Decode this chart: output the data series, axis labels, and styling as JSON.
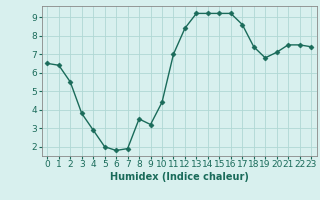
{
  "x": [
    0,
    1,
    2,
    3,
    4,
    5,
    6,
    7,
    8,
    9,
    10,
    11,
    12,
    13,
    14,
    15,
    16,
    17,
    18,
    19,
    20,
    21,
    22,
    23
  ],
  "y": [
    6.5,
    6.4,
    5.5,
    3.8,
    2.9,
    2.0,
    1.8,
    1.9,
    3.5,
    3.2,
    4.4,
    7.0,
    8.4,
    9.2,
    9.2,
    9.2,
    9.2,
    8.6,
    7.4,
    6.8,
    7.1,
    7.5,
    7.5,
    7.4
  ],
  "line_color": "#1a6b5a",
  "marker": "D",
  "marker_size": 2.5,
  "bg_color": "#d8f0ee",
  "grid_color": "#b0d8d4",
  "xlabel": "Humidex (Indice chaleur)",
  "xlim": [
    -0.5,
    23.5
  ],
  "ylim": [
    1.5,
    9.6
  ],
  "yticks": [
    2,
    3,
    4,
    5,
    6,
    7,
    8,
    9
  ],
  "xticks": [
    0,
    1,
    2,
    3,
    4,
    5,
    6,
    7,
    8,
    9,
    10,
    11,
    12,
    13,
    14,
    15,
    16,
    17,
    18,
    19,
    20,
    21,
    22,
    23
  ],
  "xlabel_fontsize": 7,
  "tick_fontsize": 6.5,
  "line_width": 1.0,
  "tick_color": "#1a6b5a",
  "spine_color": "#888888"
}
